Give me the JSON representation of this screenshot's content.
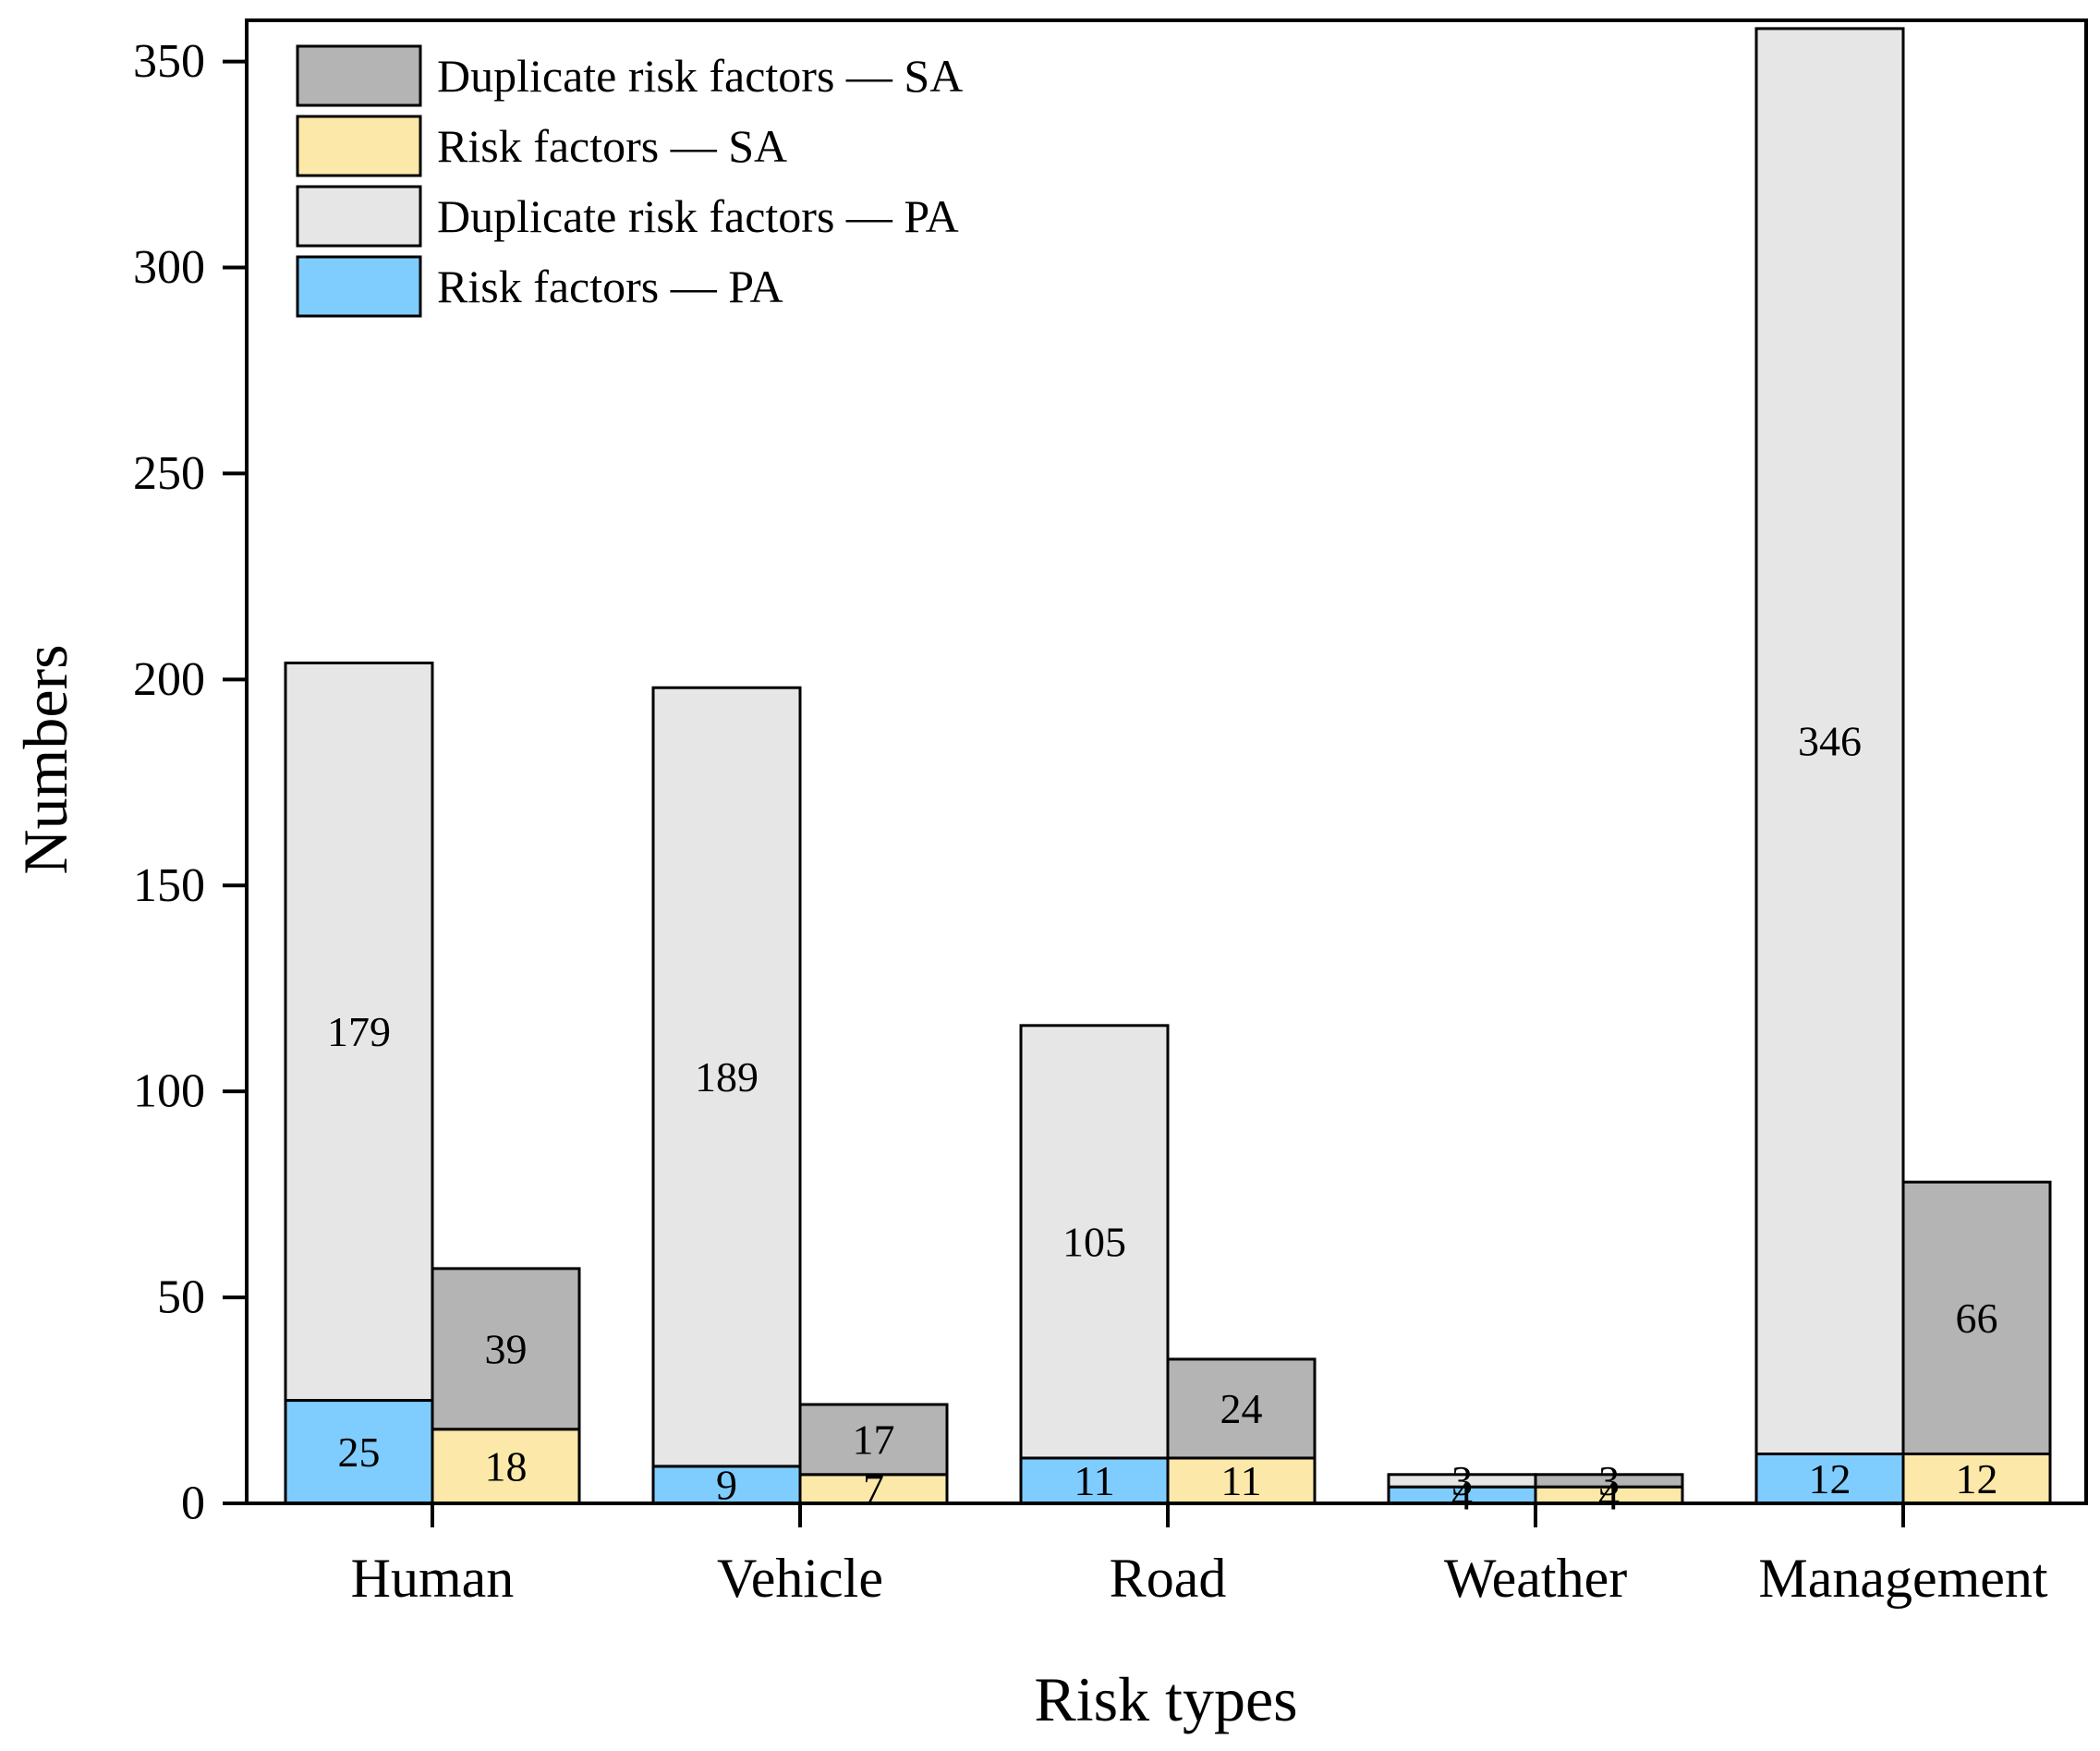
{
  "chart_data": {
    "type": "bar",
    "stacked": true,
    "grouped": true,
    "title": "",
    "xlabel": "Risk types",
    "ylabel": "Numbers",
    "ylim": [
      0,
      360
    ],
    "yticks": [
      0,
      50,
      100,
      150,
      200,
      250,
      300,
      350
    ],
    "categories": [
      "Human",
      "Vehicle",
      "Road",
      "Weather",
      "Management"
    ],
    "groups": [
      {
        "name": "PA",
        "series": [
          {
            "name": "Risk factors — PA",
            "color": "#7fcdff",
            "values": [
              25,
              9,
              11,
              4,
              12
            ]
          },
          {
            "name": "Duplicate risk factors — PA",
            "color": "#e6e6e6",
            "values": [
              179,
              189,
              105,
              3,
              346
            ]
          }
        ]
      },
      {
        "name": "SA",
        "series": [
          {
            "name": "Risk factors — SA",
            "color": "#fce8a8",
            "values": [
              18,
              7,
              11,
              4,
              12
            ]
          },
          {
            "name": "Duplicate risk factors — SA",
            "color": "#b4b4b4",
            "values": [
              39,
              17,
              24,
              3,
              66
            ]
          }
        ]
      }
    ],
    "legend": {
      "position": "top-left",
      "entries": [
        {
          "label": "Duplicate risk factors — SA",
          "color": "#b4b4b4"
        },
        {
          "label": "Risk factors — SA",
          "color": "#fce8a8"
        },
        {
          "label": "Duplicate risk factors — PA",
          "color": "#e6e6e6"
        },
        {
          "label": "Risk factors — PA",
          "color": "#7fcdff"
        }
      ]
    }
  }
}
